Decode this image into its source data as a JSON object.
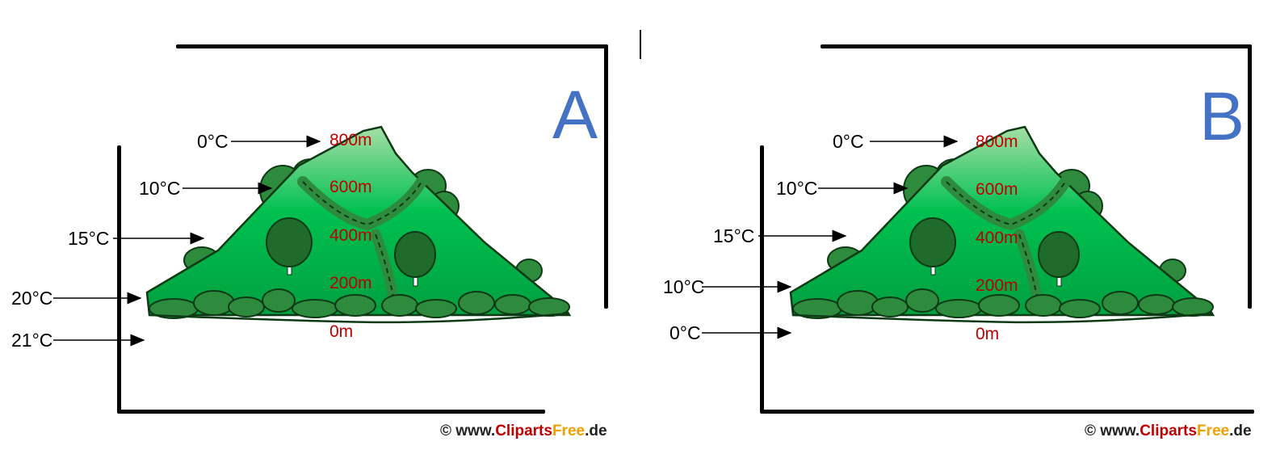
{
  "panels": [
    {
      "letter": "A",
      "temps": [
        "0°C",
        "10°C",
        "15°C",
        "20°C",
        "21°C"
      ],
      "altitudes": [
        "800m",
        "600m",
        "400m",
        "200m",
        "0m"
      ],
      "credit": {
        "prefix": "© www.",
        "brand1": "Cliparts",
        "brand2": "Free",
        "suffix": ".de"
      }
    },
    {
      "letter": "B",
      "temps": [
        "0°C",
        "10°C",
        "15°C",
        "10°C",
        "0°C"
      ],
      "altitudes": [
        "800m",
        "600m",
        "400m",
        "200m",
        "0m"
      ],
      "credit": {
        "prefix": "© www.",
        "brand1": "Cliparts",
        "brand2": "Free",
        "suffix": ".de"
      }
    }
  ],
  "colors": {
    "letter": "#4472c4",
    "altitude": "#c00000",
    "mountain_light": "#a6dfa6",
    "mountain_mid": "#00c050",
    "bush": "#2e8b3e",
    "bush_dark": "#1f6b2c"
  },
  "icons": [
    "mountain-illustration",
    "tree-icon",
    "arrow-right-icon"
  ]
}
